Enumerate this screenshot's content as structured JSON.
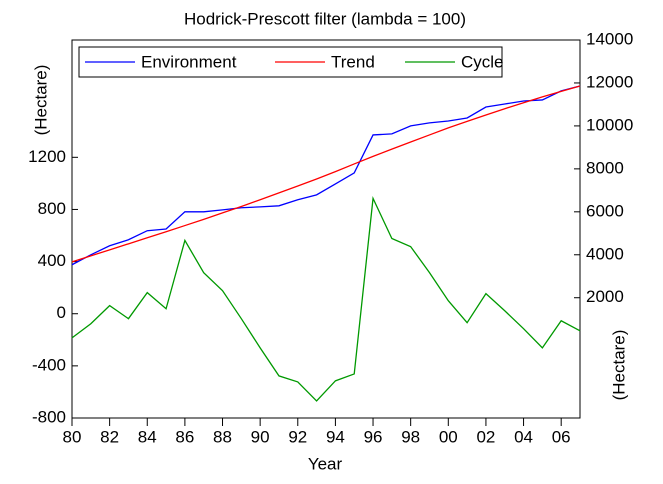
{
  "chart_data": {
    "type": "line",
    "title": "Hodrick-Prescott filter (lambda = 100)",
    "x_label": "Year",
    "y_label": "(Hectare)",
    "y2_label": "(Hectare)",
    "x": [
      1980,
      1981,
      1982,
      1983,
      1984,
      1985,
      1986,
      1987,
      1988,
      1989,
      1990,
      1991,
      1992,
      1993,
      1994,
      1995,
      1996,
      1997,
      1998,
      1999,
      2000,
      2001,
      2002,
      2003,
      2004,
      2005,
      2006,
      2007
    ],
    "xlim": [
      1980,
      2007
    ],
    "xticks": [
      {
        "value": 1980,
        "label": "80"
      },
      {
        "value": 1982,
        "label": "82"
      },
      {
        "value": 1984,
        "label": "84"
      },
      {
        "value": 1986,
        "label": "86"
      },
      {
        "value": 1988,
        "label": "88"
      },
      {
        "value": 1990,
        "label": "90"
      },
      {
        "value": 1992,
        "label": "92"
      },
      {
        "value": 1994,
        "label": "94"
      },
      {
        "value": 1996,
        "label": "96"
      },
      {
        "value": 1998,
        "label": "98"
      },
      {
        "value": 2000,
        "label": "00"
      },
      {
        "value": 2002,
        "label": "02"
      },
      {
        "value": 2004,
        "label": "04"
      },
      {
        "value": 2006,
        "label": "06"
      }
    ],
    "ylim": [
      -800,
      2100
    ],
    "yticks": [
      -800,
      -400,
      0,
      400,
      800,
      1200
    ],
    "y2lim": [
      -3600,
      14000
    ],
    "y2ticks": [
      2000,
      4000,
      6000,
      8000,
      10000,
      12000,
      14000
    ],
    "legend": "top-left",
    "series": [
      {
        "name": "Environment",
        "color": "#0000ff",
        "axis": "y2",
        "values": [
          3535,
          4000,
          4420,
          4700,
          5120,
          5200,
          6000,
          6000,
          6090,
          6190,
          6230,
          6280,
          6560,
          6790,
          7300,
          7810,
          9580,
          9630,
          10000,
          10140,
          10230,
          10370,
          10880,
          11020,
          11160,
          11210,
          11630,
          11860
        ]
      },
      {
        "name": "Trend",
        "color": "#ff0000",
        "axis": "y2",
        "values": [
          3670,
          3950,
          4230,
          4510,
          4790,
          5070,
          5360,
          5650,
          5950,
          6250,
          6560,
          6880,
          7200,
          7530,
          7870,
          8230,
          8580,
          8920,
          9250,
          9580,
          9910,
          10210,
          10510,
          10800,
          11080,
          11350,
          11610,
          11860
        ]
      },
      {
        "name": "Cycle",
        "color": "#009900",
        "values": [
          -185,
          -77,
          62,
          -38,
          162,
          38,
          562,
          315,
          177,
          -38,
          -262,
          -477,
          -523,
          -669,
          -515,
          -462,
          885,
          577,
          515,
          315,
          100,
          -69,
          154,
          23,
          -115,
          -262,
          -54,
          -131
        ]
      }
    ]
  }
}
